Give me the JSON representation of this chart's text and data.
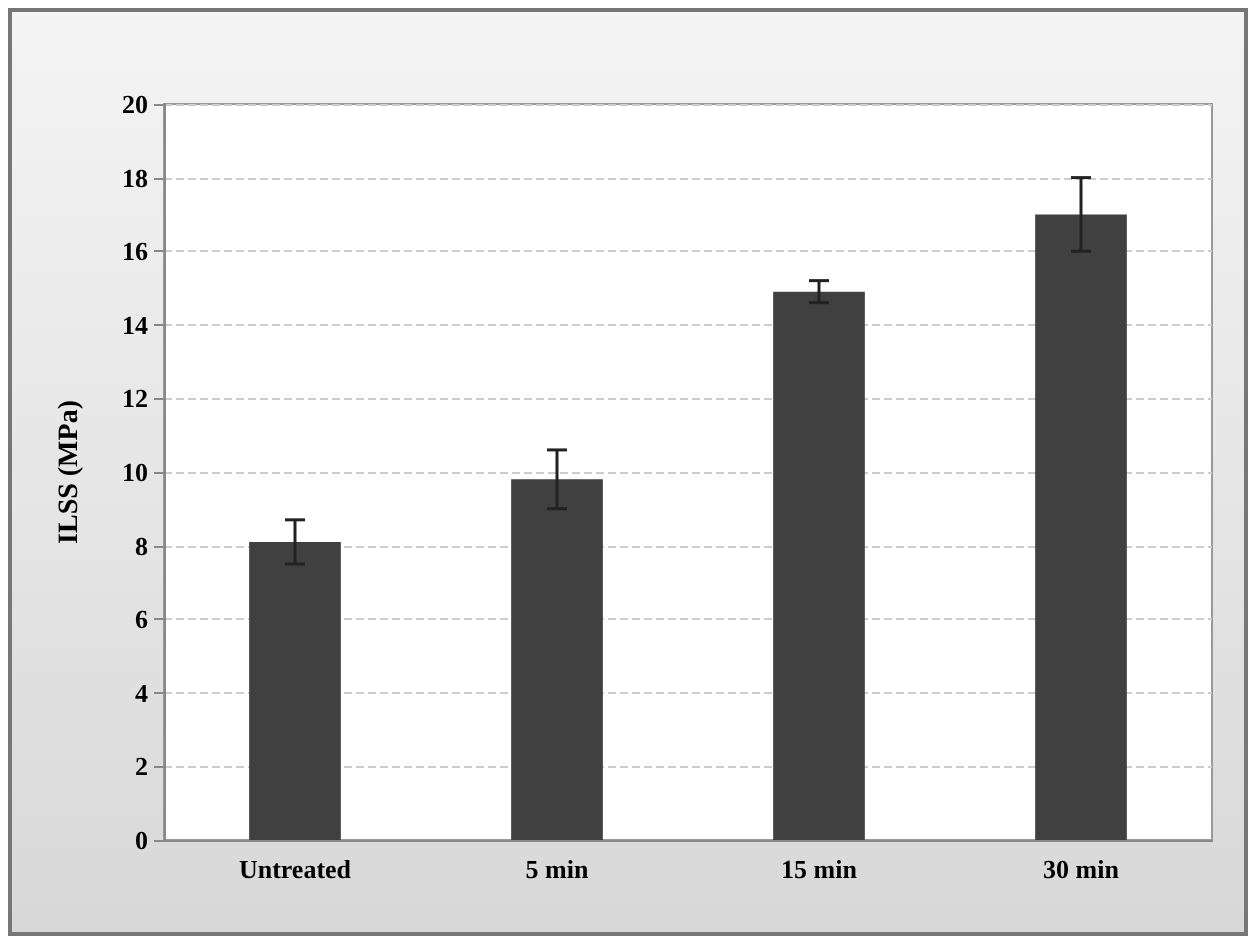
{
  "chart_data": {
    "type": "bar",
    "ylabel": "ILSS (MPa)",
    "categories": [
      "Untreated",
      "5 min",
      "15 min",
      "30 min"
    ],
    "values": [
      8.1,
      9.8,
      14.9,
      17.0
    ],
    "errors": [
      0.6,
      0.8,
      0.3,
      1.0
    ],
    "color": "#404040",
    "ylim": [
      0,
      20
    ],
    "yticks": [
      0,
      2,
      4,
      6,
      8,
      10,
      12,
      14,
      16,
      18,
      20
    ],
    "grid": "y"
  }
}
